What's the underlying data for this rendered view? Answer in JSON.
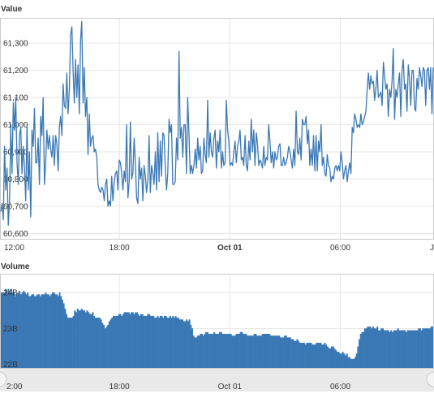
{
  "chart_data": [
    {
      "type": "line",
      "title": "Value",
      "series_color": "#3a78b5",
      "ylim": [
        60580,
        61390
      ],
      "y_ticks": [
        "60,600",
        "60,700",
        "60,800",
        "60,900",
        "61,000",
        "61,100",
        "61,200",
        "61,300"
      ],
      "y_tick_values": [
        60600,
        60700,
        60800,
        60900,
        61000,
        61100,
        61200,
        61300
      ],
      "x_ticks": [
        {
          "label": "12:00",
          "hours": 0,
          "bold": false
        },
        {
          "label": "18:00",
          "hours": 6,
          "bold": false
        },
        {
          "label": "Oct 01",
          "hours": 12,
          "bold": true
        },
        {
          "label": "06:00",
          "hours": 18,
          "bold": false
        },
        {
          "label": "J",
          "hours": 23,
          "bold": false
        }
      ],
      "xlim_hours": [
        0,
        23
      ],
      "grid": true,
      "values": [
        60680,
        60710,
        60650,
        60920,
        60760,
        60840,
        60630,
        60720,
        61000,
        60820,
        61080,
        60980,
        61100,
        60860,
        60780,
        60960,
        60990,
        60820,
        60920,
        60840,
        60720,
        61000,
        60760,
        60900,
        60660,
        60980,
        60920,
        61060,
        60860,
        60860,
        60950,
        60780,
        61030,
        60960,
        61100,
        60780,
        60860,
        60980,
        60910,
        60960,
        60910,
        60880,
        60960,
        60850,
        60960,
        60930,
        60830,
        60990,
        61030,
        60960,
        61150,
        61070,
        61060,
        61190,
        61040,
        61130,
        61330,
        61360,
        61200,
        61080,
        61240,
        61100,
        61220,
        61040,
        61310,
        61380,
        61080,
        61210,
        61030,
        61100,
        60890,
        61040,
        60920,
        60950,
        60960,
        60900,
        60910,
        60880,
        60780,
        60760,
        60750,
        60770,
        60760,
        60720,
        60780,
        60800,
        60700,
        60720,
        60700,
        60810,
        60720,
        60790,
        60820,
        60830,
        60760,
        60870,
        60860,
        60820,
        60760,
        60830,
        60790,
        61000,
        60730,
        60790,
        61010,
        60800,
        60820,
        60950,
        60860,
        60730,
        60710,
        60880,
        60800,
        60840,
        60720,
        60850,
        60810,
        60750,
        60800,
        60960,
        60750,
        60850,
        60820,
        60780,
        60900,
        60760,
        60970,
        60790,
        60940,
        60810,
        60970,
        60960,
        60840,
        60760,
        60820,
        61020,
        60970,
        61000,
        60780,
        60780,
        60790,
        60950,
        60870,
        61270,
        60950,
        60990,
        60880,
        61000,
        61000,
        60820,
        61100,
        60970,
        60820,
        60850,
        60820,
        60850,
        60910,
        60840,
        60950,
        60870,
        60920,
        60820,
        60830,
        60950,
        60890,
        60860,
        61090,
        60880,
        60970,
        60900,
        60880,
        60950,
        60980,
        60840,
        60940,
        60900,
        60980,
        60840,
        60900,
        60850,
        60860,
        61090,
        60980,
        60940,
        60850,
        60860,
        60850,
        60900,
        60940,
        60860,
        60920,
        60940,
        60980,
        60870,
        60880,
        60850,
        60960,
        60850,
        60830,
        60940,
        60870,
        61020,
        60900,
        60980,
        60850,
        60970,
        60930,
        60850,
        60870,
        60860,
        60840,
        60920,
        60850,
        60880,
        60870,
        61000,
        60940,
        60860,
        60900,
        60840,
        60900,
        60870,
        60880,
        60920,
        60930,
        60850,
        60850,
        60880,
        60850,
        60860,
        60880,
        60920,
        60900,
        60870,
        60840,
        60910,
        60850,
        61050,
        60900,
        60890,
        60950,
        60870,
        61020,
        61000,
        61000,
        61030,
        60930,
        60980,
        60850,
        60910,
        60850,
        60960,
        60830,
        60960,
        60830,
        60940,
        60900,
        61000,
        60850,
        60880,
        60820,
        60810,
        60890,
        60850,
        60840,
        60790,
        60810,
        60800,
        60840,
        60850,
        60830,
        60850,
        60830,
        60900,
        60860,
        60800,
        60830,
        60850,
        60790,
        60830,
        60860,
        60820,
        60990,
        60970,
        61040,
        61020,
        60990,
        61000,
        60990,
        61040,
        61000,
        61010,
        61030,
        61050,
        61130,
        61190,
        61130,
        61180,
        61150,
        61160,
        61090,
        61130,
        61200,
        61100,
        61110,
        61120,
        61070,
        61230,
        61180,
        61130,
        61150,
        61030,
        61130,
        61100,
        61160,
        61280,
        61020,
        61130,
        61100,
        61150,
        61190,
        61030,
        61200,
        61240,
        61130,
        61150,
        61050,
        61220,
        61170,
        61070,
        61200,
        61200,
        61060,
        61050,
        61170,
        61130,
        61210,
        61180,
        61140,
        61210,
        61200,
        61070,
        61200,
        61210,
        61130,
        61210,
        61040,
        61210
      ]
    },
    {
      "type": "bar",
      "title": "Volume",
      "series_color": "#3a78b5",
      "ylim": [
        21.9,
        24.5
      ],
      "y_ticks": [
        "22B",
        "23B",
        "24B"
      ],
      "y_tick_values": [
        22,
        23,
        24
      ],
      "x_ticks": [
        {
          "label": "12:00",
          "hours": 0,
          "bold": false
        },
        {
          "label": "18:00",
          "hours": 6,
          "bold": false
        },
        {
          "label": "Oct 01",
          "hours": 12,
          "bold": true
        },
        {
          "label": "06:00",
          "hours": 18,
          "bold": false
        }
      ],
      "xlim_hours": [
        0,
        23
      ],
      "grid": true,
      "values": [
        24.0,
        24.0,
        24.0,
        24.1,
        24.0,
        24.1,
        24.0,
        24.1,
        24.0,
        24.0,
        23.9,
        23.95,
        24.0,
        24.05,
        23.95,
        24.0,
        24.05,
        24.0,
        23.95,
        24.0,
        23.9,
        23.9,
        23.95,
        23.95,
        23.9,
        23.9,
        23.95,
        23.95,
        23.9,
        23.95,
        23.95,
        23.95,
        24.0,
        23.95,
        23.95,
        23.9,
        23.95,
        24.0,
        24.0,
        23.95,
        23.95,
        23.9,
        24.0,
        23.9,
        23.8,
        23.7,
        23.55,
        23.4,
        23.3,
        23.3,
        23.3,
        23.3,
        23.35,
        23.5,
        23.45,
        23.55,
        23.5,
        23.5,
        23.55,
        23.5,
        23.5,
        23.45,
        23.5,
        23.45,
        23.4,
        23.4,
        23.45,
        23.35,
        23.3,
        23.3,
        23.3,
        23.3,
        23.25,
        23.15,
        23.1,
        23.0,
        23.05,
        23.1,
        23.2,
        23.25,
        23.3,
        23.35,
        23.35,
        23.35,
        23.35,
        23.4,
        23.4,
        23.35,
        23.4,
        23.45,
        23.45,
        23.45,
        23.45,
        23.4,
        23.45,
        23.45,
        23.4,
        23.45,
        23.45,
        23.4,
        23.35,
        23.4,
        23.4,
        23.35,
        23.35,
        23.35,
        23.4,
        23.4,
        23.35,
        23.35,
        23.35,
        23.3,
        23.3,
        23.35,
        23.3,
        23.35,
        23.35,
        23.3,
        23.35,
        23.35,
        23.3,
        23.3,
        23.35,
        23.3,
        23.35,
        23.3,
        23.35,
        23.3,
        23.3,
        23.25,
        23.25,
        23.25,
        23.2,
        23.2,
        23.25,
        23.2,
        23.25,
        23.1,
        23.0,
        22.8,
        22.75,
        22.75,
        22.8,
        22.8,
        22.85,
        22.85,
        22.8,
        22.85,
        22.9,
        22.9,
        22.85,
        22.85,
        22.85,
        22.85,
        22.9,
        22.85,
        22.85,
        22.85,
        22.9,
        22.9,
        22.85,
        22.85,
        22.85,
        22.85,
        22.85,
        22.85,
        22.85,
        22.8,
        22.8,
        22.8,
        22.85,
        22.85,
        22.85,
        22.9,
        22.9,
        22.85,
        22.85,
        22.85,
        22.8,
        22.8,
        22.8,
        22.8,
        22.8,
        22.85,
        22.85,
        22.8,
        22.8,
        22.8,
        22.8,
        22.85,
        22.85,
        22.85,
        22.85,
        22.85,
        22.85,
        22.8,
        22.8,
        22.8,
        22.8,
        22.8,
        22.8,
        22.8,
        22.75,
        22.75,
        22.75,
        22.8,
        22.8,
        22.75,
        22.75,
        22.75,
        22.7,
        22.7,
        22.65,
        22.65,
        22.7,
        22.65,
        22.6,
        22.6,
        22.6,
        22.6,
        22.55,
        22.6,
        22.6,
        22.6,
        22.6,
        22.55,
        22.55,
        22.55,
        22.6,
        22.6,
        22.6,
        22.6,
        22.55,
        22.55,
        22.6,
        22.55,
        22.5,
        22.45,
        22.45,
        22.5,
        22.5,
        22.45,
        22.4,
        22.35,
        22.35,
        22.3,
        22.3,
        22.35,
        22.3,
        22.25,
        22.3,
        22.2,
        22.2,
        22.15,
        22.15,
        22.15,
        22.2,
        22.3,
        22.5,
        22.7,
        22.85,
        22.9,
        22.9,
        23.0,
        23.0,
        23.05,
        23.05,
        23.05,
        23.0,
        23.05,
        23.0,
        23.0,
        23.05,
        22.95,
        22.95,
        23.0,
        23.0,
        22.95,
        22.95,
        22.95,
        22.95,
        22.9,
        22.95,
        22.9,
        22.95,
        22.95,
        22.95,
        23.0,
        22.95,
        22.95,
        22.95,
        22.95,
        22.95,
        22.9,
        22.95,
        22.95,
        22.95,
        22.95,
        22.95,
        22.95,
        22.95,
        22.95,
        23.0,
        23.0,
        22.95,
        23.0,
        23.0,
        23.0,
        23.0,
        23.0,
        23.0,
        23.05,
        23.05
      ]
    }
  ],
  "navigator": {
    "x_ticks": [
      {
        "label": "2:00",
        "hours": 0
      },
      {
        "label": "18:00",
        "hours": 6
      },
      {
        "label": "Oct 01",
        "hours": 12
      },
      {
        "label": "06:00",
        "hours": 18
      }
    ]
  }
}
